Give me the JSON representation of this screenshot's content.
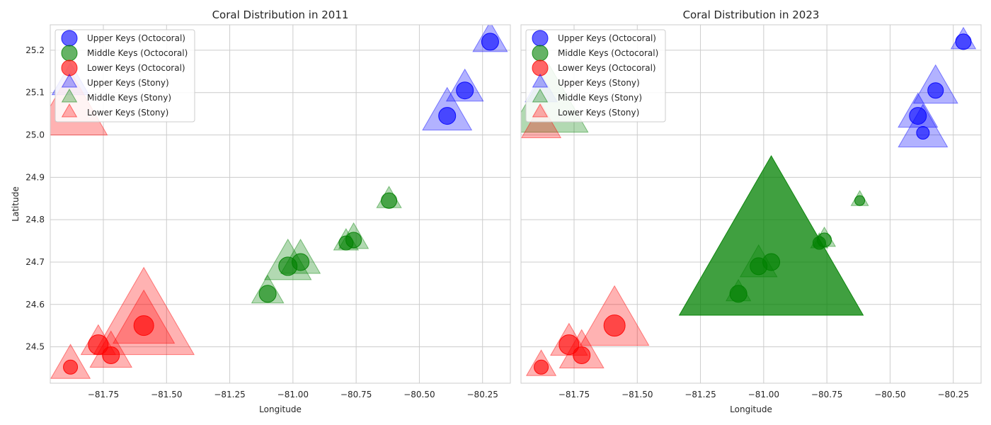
{
  "chart_data": [
    {
      "type": "scatter",
      "title": "Coral Distribution in 2011",
      "xlabel": "Longitude",
      "ylabel": "Latitude",
      "xlim": [
        -81.96,
        -80.14
      ],
      "ylim": [
        24.414,
        25.26
      ],
      "xticks": [
        -81.75,
        -81.5,
        -81.25,
        -81.0,
        -80.75,
        -80.5,
        -80.25
      ],
      "xtick_labels": [
        "−81.75",
        "−81.50",
        "−81.25",
        "−81.00",
        "−80.75",
        "−80.50",
        "−80.25"
      ],
      "yticks": [
        24.5,
        24.6,
        24.7,
        24.8,
        24.9,
        25.0,
        25.1,
        25.2
      ],
      "ytick_labels": [
        "24.5",
        "24.6",
        "24.7",
        "24.8",
        "24.9",
        "25.0",
        "25.1",
        "25.2"
      ],
      "grid": true,
      "legend_position": "top-left",
      "legend": [
        {
          "label": "Upper Keys (Octocoral)",
          "color": "#0000ff",
          "marker": "circle"
        },
        {
          "label": "Middle Keys (Octocoral)",
          "color": "#008000",
          "marker": "circle"
        },
        {
          "label": "Lower Keys (Octocoral)",
          "color": "#ff0000",
          "marker": "circle"
        },
        {
          "label": "Upper Keys (Stony)",
          "color": "#0000ff",
          "marker": "triangle"
        },
        {
          "label": "Middle Keys (Stony)",
          "color": "#008000",
          "marker": "triangle"
        },
        {
          "label": "Lower Keys (Stony)",
          "color": "#ff0000",
          "marker": "triangle"
        }
      ],
      "series": [
        {
          "name": "Upper Keys (Octocoral)",
          "marker": "circle",
          "color": "#0000ff",
          "opacity": 0.6,
          "points": [
            {
              "x": -80.22,
              "y": 25.22,
              "size": 12
            },
            {
              "x": -80.32,
              "y": 25.105,
              "size": 12
            },
            {
              "x": -80.39,
              "y": 25.045,
              "size": 12
            }
          ]
        },
        {
          "name": "Middle Keys (Octocoral)",
          "marker": "circle",
          "color": "#008000",
          "opacity": 0.6,
          "points": [
            {
              "x": -80.62,
              "y": 24.845,
              "size": 11
            },
            {
              "x": -80.76,
              "y": 24.752,
              "size": 11
            },
            {
              "x": -80.79,
              "y": 24.745,
              "size": 10
            },
            {
              "x": -80.97,
              "y": 24.7,
              "size": 12
            },
            {
              "x": -81.02,
              "y": 24.69,
              "size": 13
            },
            {
              "x": -81.1,
              "y": 24.625,
              "size": 12
            }
          ]
        },
        {
          "name": "Lower Keys (Octocoral)",
          "marker": "circle",
          "color": "#ff0000",
          "opacity": 0.6,
          "points": [
            {
              "x": -81.88,
              "y": 24.452,
              "size": 10
            },
            {
              "x": -81.77,
              "y": 24.505,
              "size": 14
            },
            {
              "x": -81.72,
              "y": 24.48,
              "size": 12
            },
            {
              "x": -81.59,
              "y": 24.55,
              "size": 14
            }
          ]
        },
        {
          "name": "Upper Keys (Stony)",
          "marker": "triangle",
          "color": "#0000ff",
          "opacity": 0.3,
          "points": [
            {
              "x": -80.22,
              "y": 25.22,
              "size": 28
            },
            {
              "x": -80.32,
              "y": 25.105,
              "size": 30
            },
            {
              "x": -80.39,
              "y": 25.045,
              "size": 40
            },
            {
              "x": -81.88,
              "y": 25.12,
              "size": 30
            }
          ]
        },
        {
          "name": "Middle Keys (Stony)",
          "marker": "triangle",
          "color": "#008000",
          "opacity": 0.3,
          "points": [
            {
              "x": -80.62,
              "y": 24.845,
              "size": 20
            },
            {
              "x": -80.76,
              "y": 24.752,
              "size": 24
            },
            {
              "x": -80.79,
              "y": 24.745,
              "size": 20
            },
            {
              "x": -80.97,
              "y": 24.7,
              "size": 32
            },
            {
              "x": -81.02,
              "y": 24.69,
              "size": 38
            },
            {
              "x": -81.1,
              "y": 24.625,
              "size": 26
            }
          ]
        },
        {
          "name": "Lower Keys (Stony)",
          "marker": "triangle",
          "color": "#ff0000",
          "opacity": 0.3,
          "points": [
            {
              "x": -81.88,
              "y": 24.452,
              "size": 32
            },
            {
              "x": -81.77,
              "y": 24.505,
              "size": 28
            },
            {
              "x": -81.72,
              "y": 24.48,
              "size": 34
            },
            {
              "x": -81.59,
              "y": 24.55,
              "size": 50
            },
            {
              "x": -81.59,
              "y": 24.55,
              "size": 82
            },
            {
              "x": -81.88,
              "y": 25.05,
              "size": 60
            }
          ]
        }
      ]
    },
    {
      "type": "scatter",
      "title": "Coral Distribution in 2023",
      "xlabel": "Longitude",
      "ylabel": "",
      "xlim": [
        -81.96,
        -80.14
      ],
      "ylim": [
        24.414,
        25.26
      ],
      "xticks": [
        -81.75,
        -81.5,
        -81.25,
        -81.0,
        -80.75,
        -80.5,
        -80.25
      ],
      "xtick_labels": [
        "−81.75",
        "−81.50",
        "−81.25",
        "−81.00",
        "−80.75",
        "−80.50",
        "−80.25"
      ],
      "yticks": [],
      "ytick_labels": [],
      "grid": true,
      "legend_position": "top-left",
      "legend": [
        {
          "label": "Upper Keys (Octocoral)",
          "color": "#0000ff",
          "marker": "circle"
        },
        {
          "label": "Middle Keys (Octocoral)",
          "color": "#008000",
          "marker": "circle"
        },
        {
          "label": "Lower Keys (Octocoral)",
          "color": "#ff0000",
          "marker": "circle"
        },
        {
          "label": "Upper Keys (Stony)",
          "color": "#0000ff",
          "marker": "triangle"
        },
        {
          "label": "Middle Keys (Stony)",
          "color": "#008000",
          "marker": "triangle"
        },
        {
          "label": "Lower Keys (Stony)",
          "color": "#ff0000",
          "marker": "triangle"
        }
      ],
      "series": [
        {
          "name": "Upper Keys (Octocoral)",
          "marker": "circle",
          "color": "#0000ff",
          "opacity": 0.6,
          "points": [
            {
              "x": -80.21,
              "y": 25.22,
              "size": 11
            },
            {
              "x": -80.32,
              "y": 25.105,
              "size": 11
            },
            {
              "x": -80.39,
              "y": 25.045,
              "size": 12
            },
            {
              "x": -80.37,
              "y": 25.005,
              "size": 9
            }
          ]
        },
        {
          "name": "Middle Keys (Octocoral)",
          "marker": "circle",
          "color": "#008000",
          "opacity": 0.6,
          "points": [
            {
              "x": -80.62,
              "y": 24.845,
              "size": 7
            },
            {
              "x": -80.76,
              "y": 24.752,
              "size": 10
            },
            {
              "x": -80.78,
              "y": 24.745,
              "size": 9
            },
            {
              "x": -80.97,
              "y": 24.7,
              "size": 12
            },
            {
              "x": -81.02,
              "y": 24.69,
              "size": 12
            },
            {
              "x": -81.1,
              "y": 24.625,
              "size": 12
            }
          ]
        },
        {
          "name": "Lower Keys (Octocoral)",
          "marker": "circle",
          "color": "#ff0000",
          "opacity": 0.6,
          "points": [
            {
              "x": -81.88,
              "y": 24.452,
              "size": 10
            },
            {
              "x": -81.77,
              "y": 24.505,
              "size": 14
            },
            {
              "x": -81.72,
              "y": 24.48,
              "size": 12
            },
            {
              "x": -81.59,
              "y": 24.55,
              "size": 15
            }
          ]
        },
        {
          "name": "Upper Keys (Stony)",
          "marker": "triangle",
          "color": "#0000ff",
          "opacity": 0.3,
          "points": [
            {
              "x": -80.21,
              "y": 25.22,
              "size": 20
            },
            {
              "x": -80.32,
              "y": 25.105,
              "size": 36
            },
            {
              "x": -80.39,
              "y": 25.045,
              "size": 32
            },
            {
              "x": -80.37,
              "y": 25.005,
              "size": 40
            },
            {
              "x": -81.88,
              "y": 25.1,
              "size": 26
            }
          ]
        },
        {
          "name": "Middle Keys (Stony)",
          "marker": "triangle",
          "color": "#008000",
          "opacity": 0.3,
          "points": [
            {
              "x": -80.62,
              "y": 24.845,
              "size": 14
            },
            {
              "x": -80.76,
              "y": 24.752,
              "size": 18
            },
            {
              "x": -80.78,
              "y": 24.745,
              "size": 14
            },
            {
              "x": -81.02,
              "y": 24.69,
              "size": 30
            },
            {
              "x": -81.1,
              "y": 24.625,
              "size": 20
            },
            {
              "x": -81.85,
              "y": 25.06,
              "size": 64
            }
          ]
        },
        {
          "name": "Middle Keys (Stony)",
          "marker": "triangle",
          "color": "#008000",
          "opacity": 0.75,
          "points": [
            {
              "x": -80.97,
              "y": 24.7,
              "size": 150
            }
          ]
        },
        {
          "name": "Lower Keys (Stony)",
          "marker": "triangle",
          "color": "#ff0000",
          "opacity": 0.3,
          "points": [
            {
              "x": -81.88,
              "y": 24.452,
              "size": 24
            },
            {
              "x": -81.77,
              "y": 24.505,
              "size": 30
            },
            {
              "x": -81.72,
              "y": 24.48,
              "size": 36
            },
            {
              "x": -81.59,
              "y": 24.55,
              "size": 56
            },
            {
              "x": -81.88,
              "y": 25.02,
              "size": 32
            }
          ]
        }
      ]
    }
  ]
}
